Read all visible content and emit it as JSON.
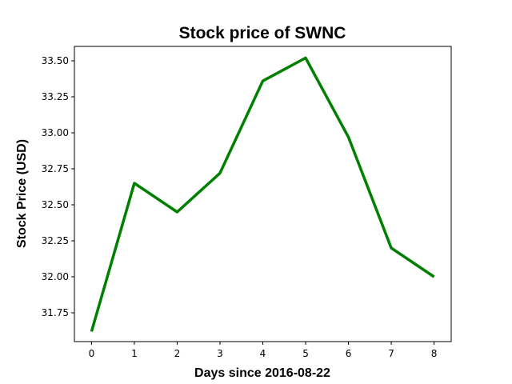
{
  "chart_data": {
    "type": "line",
    "title": "Stock price of SWNC",
    "xlabel": "Days since 2016-08-22",
    "ylabel": "Stock Price (USD)",
    "x": [
      0,
      1,
      2,
      3,
      4,
      5,
      6,
      7,
      8
    ],
    "series": [
      {
        "values": [
          31.62,
          32.65,
          32.45,
          32.72,
          33.36,
          33.52,
          32.97,
          32.2,
          32.0
        ],
        "color": "#008000"
      }
    ],
    "xlim": [
      -0.4,
      8.4
    ],
    "ylim": [
      31.55,
      33.6
    ],
    "xticks": [
      0,
      1,
      2,
      3,
      4,
      5,
      6,
      7,
      8
    ],
    "xtick_labels": [
      "0",
      "1",
      "2",
      "3",
      "4",
      "5",
      "6",
      "7",
      "8"
    ],
    "yticks": [
      31.75,
      32.0,
      32.25,
      32.5,
      32.75,
      33.0,
      33.25,
      33.5
    ],
    "ytick_labels": [
      "31.75",
      "32.00",
      "32.25",
      "32.50",
      "32.75",
      "33.00",
      "33.25",
      "33.50"
    ],
    "grid": false,
    "legend": "none"
  }
}
